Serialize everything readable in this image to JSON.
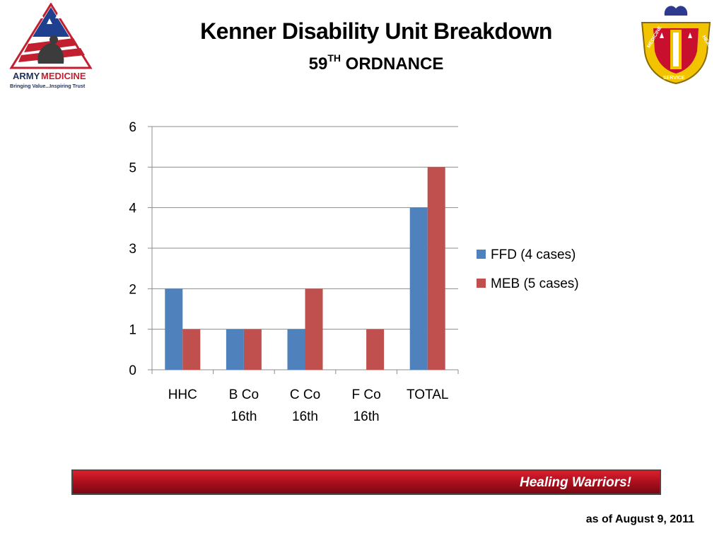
{
  "header": {
    "title": "Kenner Disability Unit Breakdown",
    "subtitle_main": "59",
    "subtitle_sup": "TH",
    "subtitle_rest": " ORDNANCE"
  },
  "logos": {
    "left_line1_a": "ARMY",
    "left_line1_b": "MEDICINE",
    "left_line2": "Bringing Value...Inspiring Trust",
    "right_text": [
      "MEDICINE",
      "HEALTH",
      "SERVICE"
    ]
  },
  "chart_data": {
    "type": "bar",
    "categories": [
      [
        "HHC"
      ],
      [
        "B Co",
        "16th"
      ],
      [
        "C Co",
        "16th"
      ],
      [
        "F Co",
        "16th"
      ],
      [
        "TOTAL"
      ]
    ],
    "series": [
      {
        "name": "FFD (4 cases)",
        "values": [
          2,
          1,
          1,
          0,
          4
        ],
        "color": "#4f81bd"
      },
      {
        "name": "MEB (5 cases)",
        "values": [
          1,
          1,
          2,
          1,
          5
        ],
        "color": "#c0504d"
      }
    ],
    "ylim": [
      0,
      6
    ],
    "yticks": [
      0,
      1,
      2,
      3,
      4,
      5,
      6
    ],
    "grid": true,
    "legend": "right"
  },
  "footer": {
    "banner_text": "Healing Warriors!",
    "date_note": "as of August 9, 2011"
  }
}
